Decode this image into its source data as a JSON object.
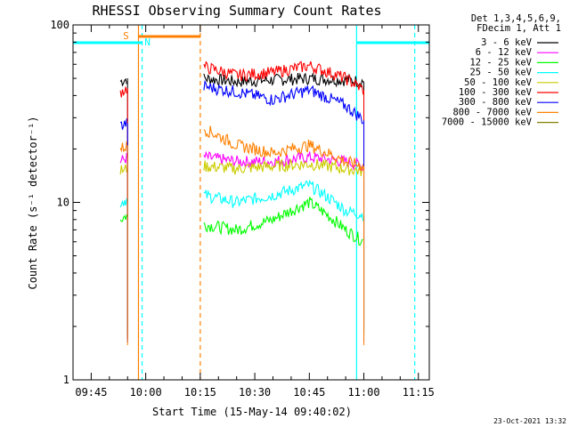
{
  "chart_data": {
    "type": "line",
    "title": "RHESSI Observing Summary Count Rates",
    "xlabel": "Start Time (15-May-14 09:40:02)",
    "ylabel": "Count Rate (s⁻¹ detector⁻¹)",
    "yscale": "log",
    "ylim": [
      1,
      100
    ],
    "xlim": [
      "09:40",
      "11:18"
    ],
    "x_ticks": [
      "09:45",
      "10:00",
      "10:15",
      "10:30",
      "10:45",
      "11:00",
      "11:15"
    ],
    "y_ticks": [
      "1",
      "10",
      "100"
    ],
    "grid": false,
    "legend_position": "top-right outside",
    "legend_header": [
      "Det 1,3,4,5,6,9,",
      "FDecim 1, Att 1"
    ],
    "date_stamp": "23-Oct-2021 13:32",
    "series": [
      {
        "name": "3 - 6 keV",
        "color": "#000000",
        "x": [
          "09:53",
          "09:55",
          "10:16",
          "10:25",
          "10:35",
          "10:45",
          "10:55",
          "11:00"
        ],
        "values": [
          48,
          50,
          50,
          48,
          49,
          50,
          49,
          48
        ]
      },
      {
        "name": "6 - 12 keV",
        "color": "#ff00ff",
        "x": [
          "09:53",
          "09:55",
          "10:16",
          "10:25",
          "10:35",
          "10:45",
          "10:55",
          "11:00"
        ],
        "values": [
          17,
          18,
          18,
          17,
          17,
          18,
          17,
          16
        ]
      },
      {
        "name": "12 - 25 keV",
        "color": "#00ff00",
        "x": [
          "09:53",
          "09:55",
          "10:16",
          "10:25",
          "10:35",
          "10:45",
          "10:55",
          "11:00"
        ],
        "values": [
          8,
          8.5,
          7.5,
          7,
          8,
          10,
          7,
          6
        ]
      },
      {
        "name": "25 - 50 keV",
        "color": "#00ffff",
        "x": [
          "09:53",
          "09:55",
          "10:16",
          "10:25",
          "10:35",
          "10:45",
          "10:55",
          "11:00"
        ],
        "values": [
          10,
          10.5,
          11,
          10,
          11,
          12.5,
          9,
          8.5
        ]
      },
      {
        "name": "50 - 100 keV",
        "color": "#cccc00",
        "x": [
          "09:53",
          "09:55",
          "10:16",
          "10:25",
          "10:35",
          "10:45",
          "10:55",
          "11:00"
        ],
        "values": [
          15,
          15.5,
          16,
          15.5,
          16,
          16.5,
          15.5,
          15
        ]
      },
      {
        "name": "100 - 300 keV",
        "color": "#ff0000",
        "x": [
          "09:53",
          "09:55",
          "10:16",
          "10:25",
          "10:35",
          "10:45",
          "10:55",
          "11:00"
        ],
        "values": [
          42,
          44,
          58,
          52,
          54,
          59,
          50,
          43
        ]
      },
      {
        "name": "300 - 800 keV",
        "color": "#0000ff",
        "x": [
          "09:53",
          "09:55",
          "10:16",
          "10:25",
          "10:35",
          "10:45",
          "10:55",
          "11:00"
        ],
        "values": [
          27,
          28,
          45,
          42,
          38,
          43,
          35,
          29
        ]
      },
      {
        "name": "800 - 7000 keV",
        "color": "#ff8000",
        "x": [
          "09:53",
          "09:55",
          "10:16",
          "10:25",
          "10:35",
          "10:45",
          "10:55",
          "11:00"
        ],
        "values": [
          20,
          21,
          26,
          21,
          19,
          21,
          17,
          16
        ]
      },
      {
        "name": "7000 - 15000 keV",
        "color": "#808000",
        "x": [],
        "values": []
      }
    ],
    "annotations": [
      {
        "text": "S",
        "color": "#ff8000",
        "x": "09:58"
      },
      {
        "text": "N",
        "color": "#00ffff",
        "x": "09:59"
      }
    ],
    "markers": {
      "night_bars": [
        {
          "from": "09:40",
          "to": "09:59"
        },
        {
          "from": "10:58",
          "to": "11:18"
        }
      ],
      "saa_bar": {
        "from": "09:58",
        "to": "10:15"
      },
      "cyan_lines": [
        {
          "time": "09:59",
          "style": "dashed"
        },
        {
          "time": "10:58",
          "style": "solid"
        },
        {
          "time": "11:14",
          "style": "dashed"
        }
      ],
      "orange_lines": [
        {
          "time": "09:58",
          "style": "solid"
        },
        {
          "time": "10:15",
          "style": "dashed"
        }
      ]
    }
  }
}
